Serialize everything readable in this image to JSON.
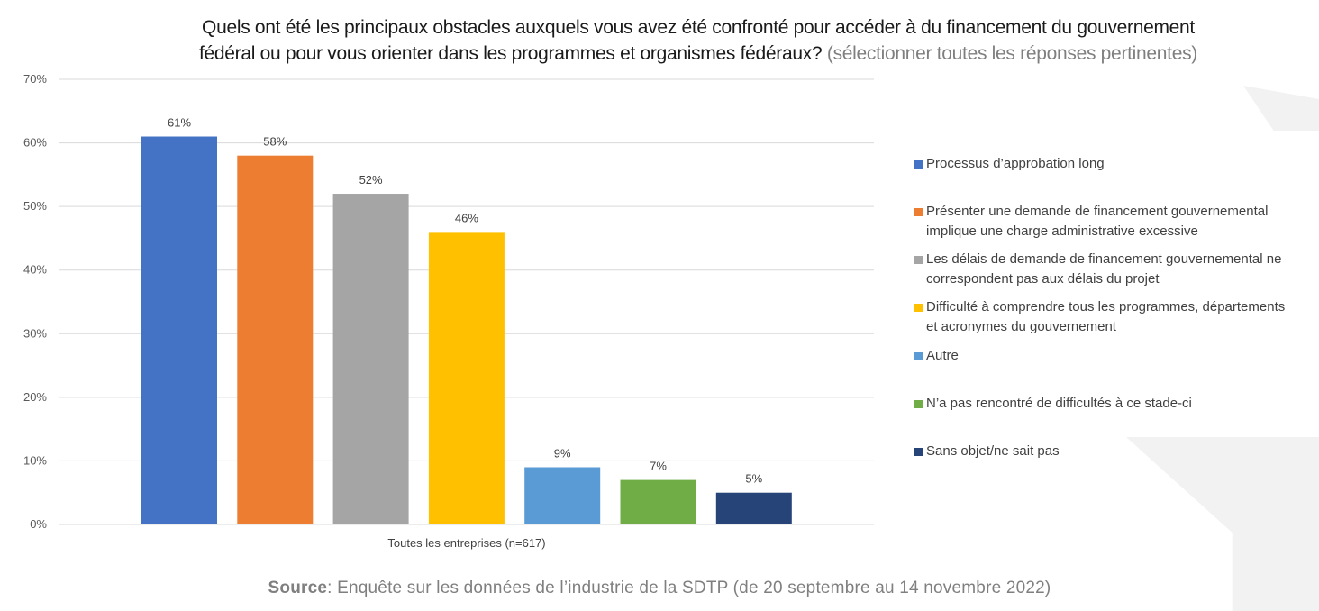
{
  "chart_data": {
    "type": "bar",
    "title": "Quels ont été les principaux obstacles auxquels vous avez été confronté pour accéder à du financement du gouvernement fédéral ou pour vous orienter dans les programmes et organismes fédéraux?",
    "subtitle": "(sélectionner toutes les réponses pertinentes)",
    "title_line1": "Quels ont été les principaux obstacles auxquels vous avez été confronté pour accéder à du financement du gouvernement",
    "title_line2": "fédéral ou pour vous orienter dans les programmes et organismes fédéraux?",
    "categories": [
      "Toutes les entreprises (n=617)"
    ],
    "xlabel": "Toutes les entreprises (n=617)",
    "ylabel": "",
    "ylim": [
      0,
      70
    ],
    "yticks": [
      0,
      10,
      20,
      30,
      40,
      50,
      60,
      70
    ],
    "ytick_labels": [
      "0%",
      "10%",
      "20%",
      "30%",
      "40%",
      "50%",
      "60%",
      "70%"
    ],
    "grid": true,
    "legend_position": "right",
    "series": [
      {
        "name": "Processus d’approbation long",
        "values": [
          61
        ],
        "label": "61%",
        "color": "#4472C4"
      },
      {
        "name": "Présenter une demande de financement gouvernemental implique une charge administrative excessive",
        "values": [
          58
        ],
        "label": "58%",
        "color": "#ED7D31"
      },
      {
        "name": "Les délais de demande de financement gouvernemental ne correspondent pas aux délais du projet",
        "values": [
          52
        ],
        "label": "52%",
        "color": "#A5A5A5"
      },
      {
        "name": "Difficulté à comprendre tous les programmes, départements et acronymes du gouvernement",
        "values": [
          46
        ],
        "label": "46%",
        "color": "#FFC000"
      },
      {
        "name": "Autre",
        "values": [
          9
        ],
        "label": "9%",
        "color": "#5B9BD5"
      },
      {
        "name": "N’a pas rencontré de difficultés à ce stade-ci",
        "values": [
          7
        ],
        "label": "7%",
        "color": "#70AD47"
      },
      {
        "name": "Sans objet/ne sait pas",
        "values": [
          5
        ],
        "label": "5%",
        "color": "#264478"
      }
    ]
  },
  "legend": {
    "items": [
      {
        "lines": [
          "Processus d’approbation long"
        ],
        "color": "#4472C4"
      },
      {
        "lines": [
          "Présenter une demande de financement gouvernemental",
          "implique une charge administrative excessive"
        ],
        "color": "#ED7D31"
      },
      {
        "lines": [
          "Les délais de demande de financement gouvernemental ne",
          "correspondent pas aux délais du projet"
        ],
        "color": "#A5A5A5"
      },
      {
        "lines": [
          "Difficulté à comprendre tous les programmes, départements",
          "et acronymes du gouvernement"
        ],
        "color": "#FFC000"
      },
      {
        "lines": [
          "Autre"
        ],
        "color": "#5B9BD5"
      },
      {
        "lines": [
          "N’a pas rencontré de difficultés à ce stade-ci"
        ],
        "color": "#70AD47"
      },
      {
        "lines": [
          "Sans objet/ne sait pas"
        ],
        "color": "#264478"
      }
    ]
  },
  "source": {
    "label": "Source",
    "text": ": Enquête sur les données de l’industrie de la SDTP (de 20 septembre au 14 novembre 2022)"
  }
}
